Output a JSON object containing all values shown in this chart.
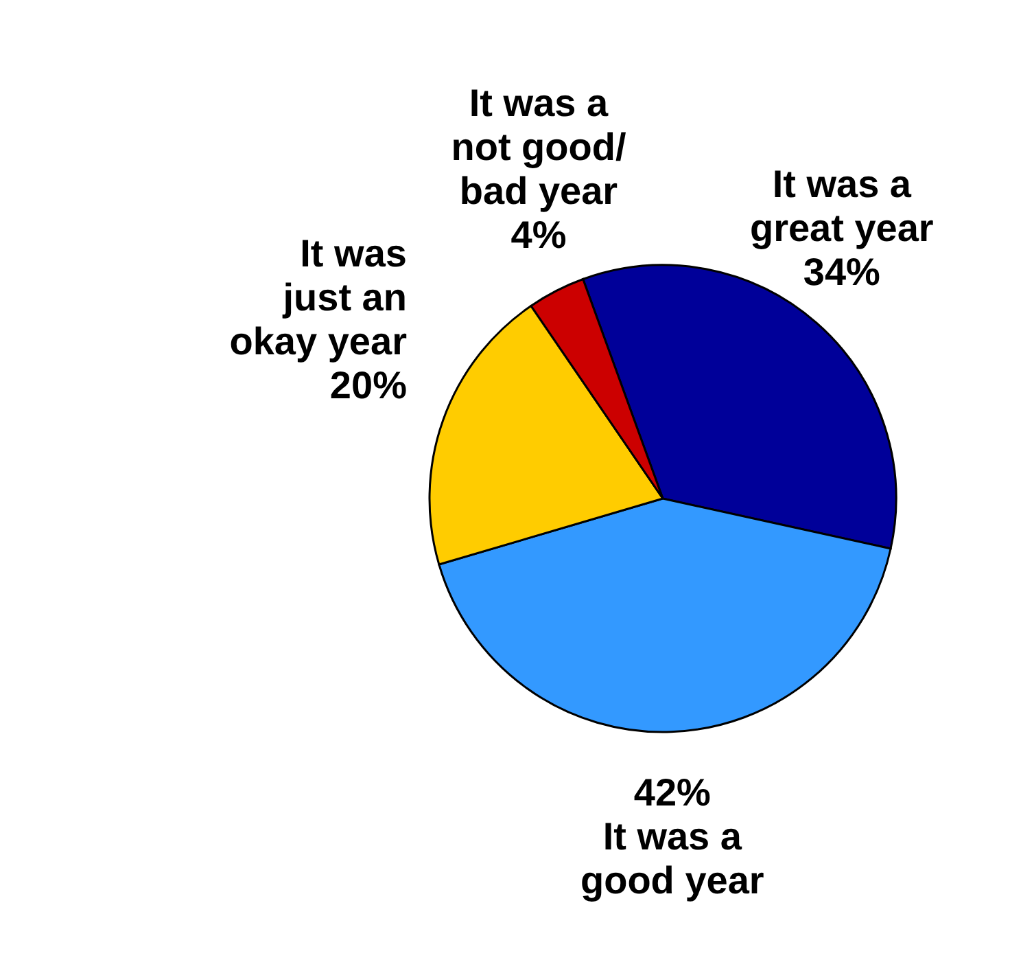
{
  "chart_data": {
    "type": "pie",
    "categories": [
      "It was a great year",
      "It was a good year",
      "It was just an okay year",
      "It was a not good/ bad year"
    ],
    "values": [
      34,
      42,
      20,
      4
    ],
    "colors": [
      "#000099",
      "#3399ff",
      "#ffcc00",
      "#cc0000"
    ],
    "value_labels": [
      "34%",
      "42%",
      "20%",
      "4%"
    ]
  }
}
